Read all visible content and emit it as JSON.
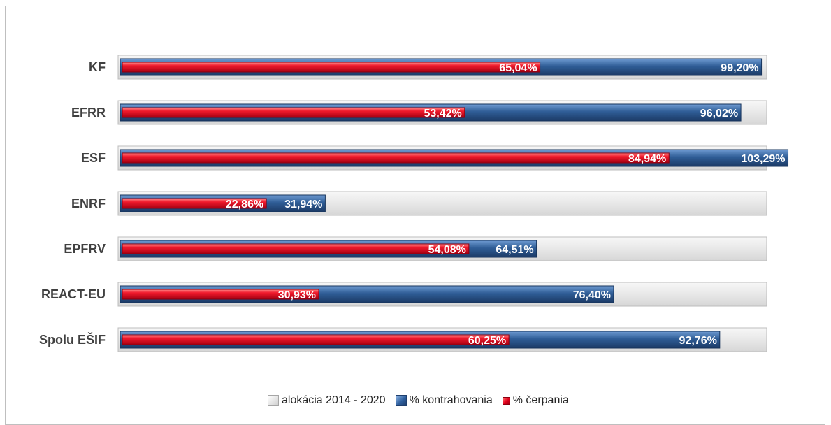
{
  "chart_data": {
    "type": "bar",
    "orientation": "horizontal",
    "categories": [
      "KF",
      "EFRR",
      "ESF",
      "ENRF",
      "EPFRV",
      "REACT-EU",
      "Spolu EŠIF"
    ],
    "series": [
      {
        "name": "alokácia 2014 - 2020",
        "values": [
          100,
          100,
          100,
          100,
          100,
          100,
          100
        ],
        "color": "#e6e6e6"
      },
      {
        "name": "% kontrahovania",
        "values": [
          99.2,
          96.02,
          103.29,
          31.94,
          64.51,
          76.4,
          92.76
        ],
        "labels": [
          "99,20%",
          "96,02%",
          "103,29%",
          "31,94%",
          "64,51%",
          "76,40%",
          "92,76%"
        ],
        "color": "#2e5f9e"
      },
      {
        "name": "% čerpania",
        "values": [
          65.04,
          53.42,
          84.94,
          22.86,
          54.08,
          30.93,
          60.25
        ],
        "labels": [
          "65,04%",
          "53,42%",
          "84,94%",
          "22,86%",
          "54,08%",
          "30,93%",
          "60,25%"
        ],
        "color": "#e0001b"
      }
    ],
    "xlim": [
      0,
      105
    ],
    "grid": false,
    "legend_position": "bottom"
  },
  "legend": {
    "alloc": "alokácia 2014 - 2020",
    "contr": "% kontrahovania",
    "cerp": "% čerpania"
  }
}
